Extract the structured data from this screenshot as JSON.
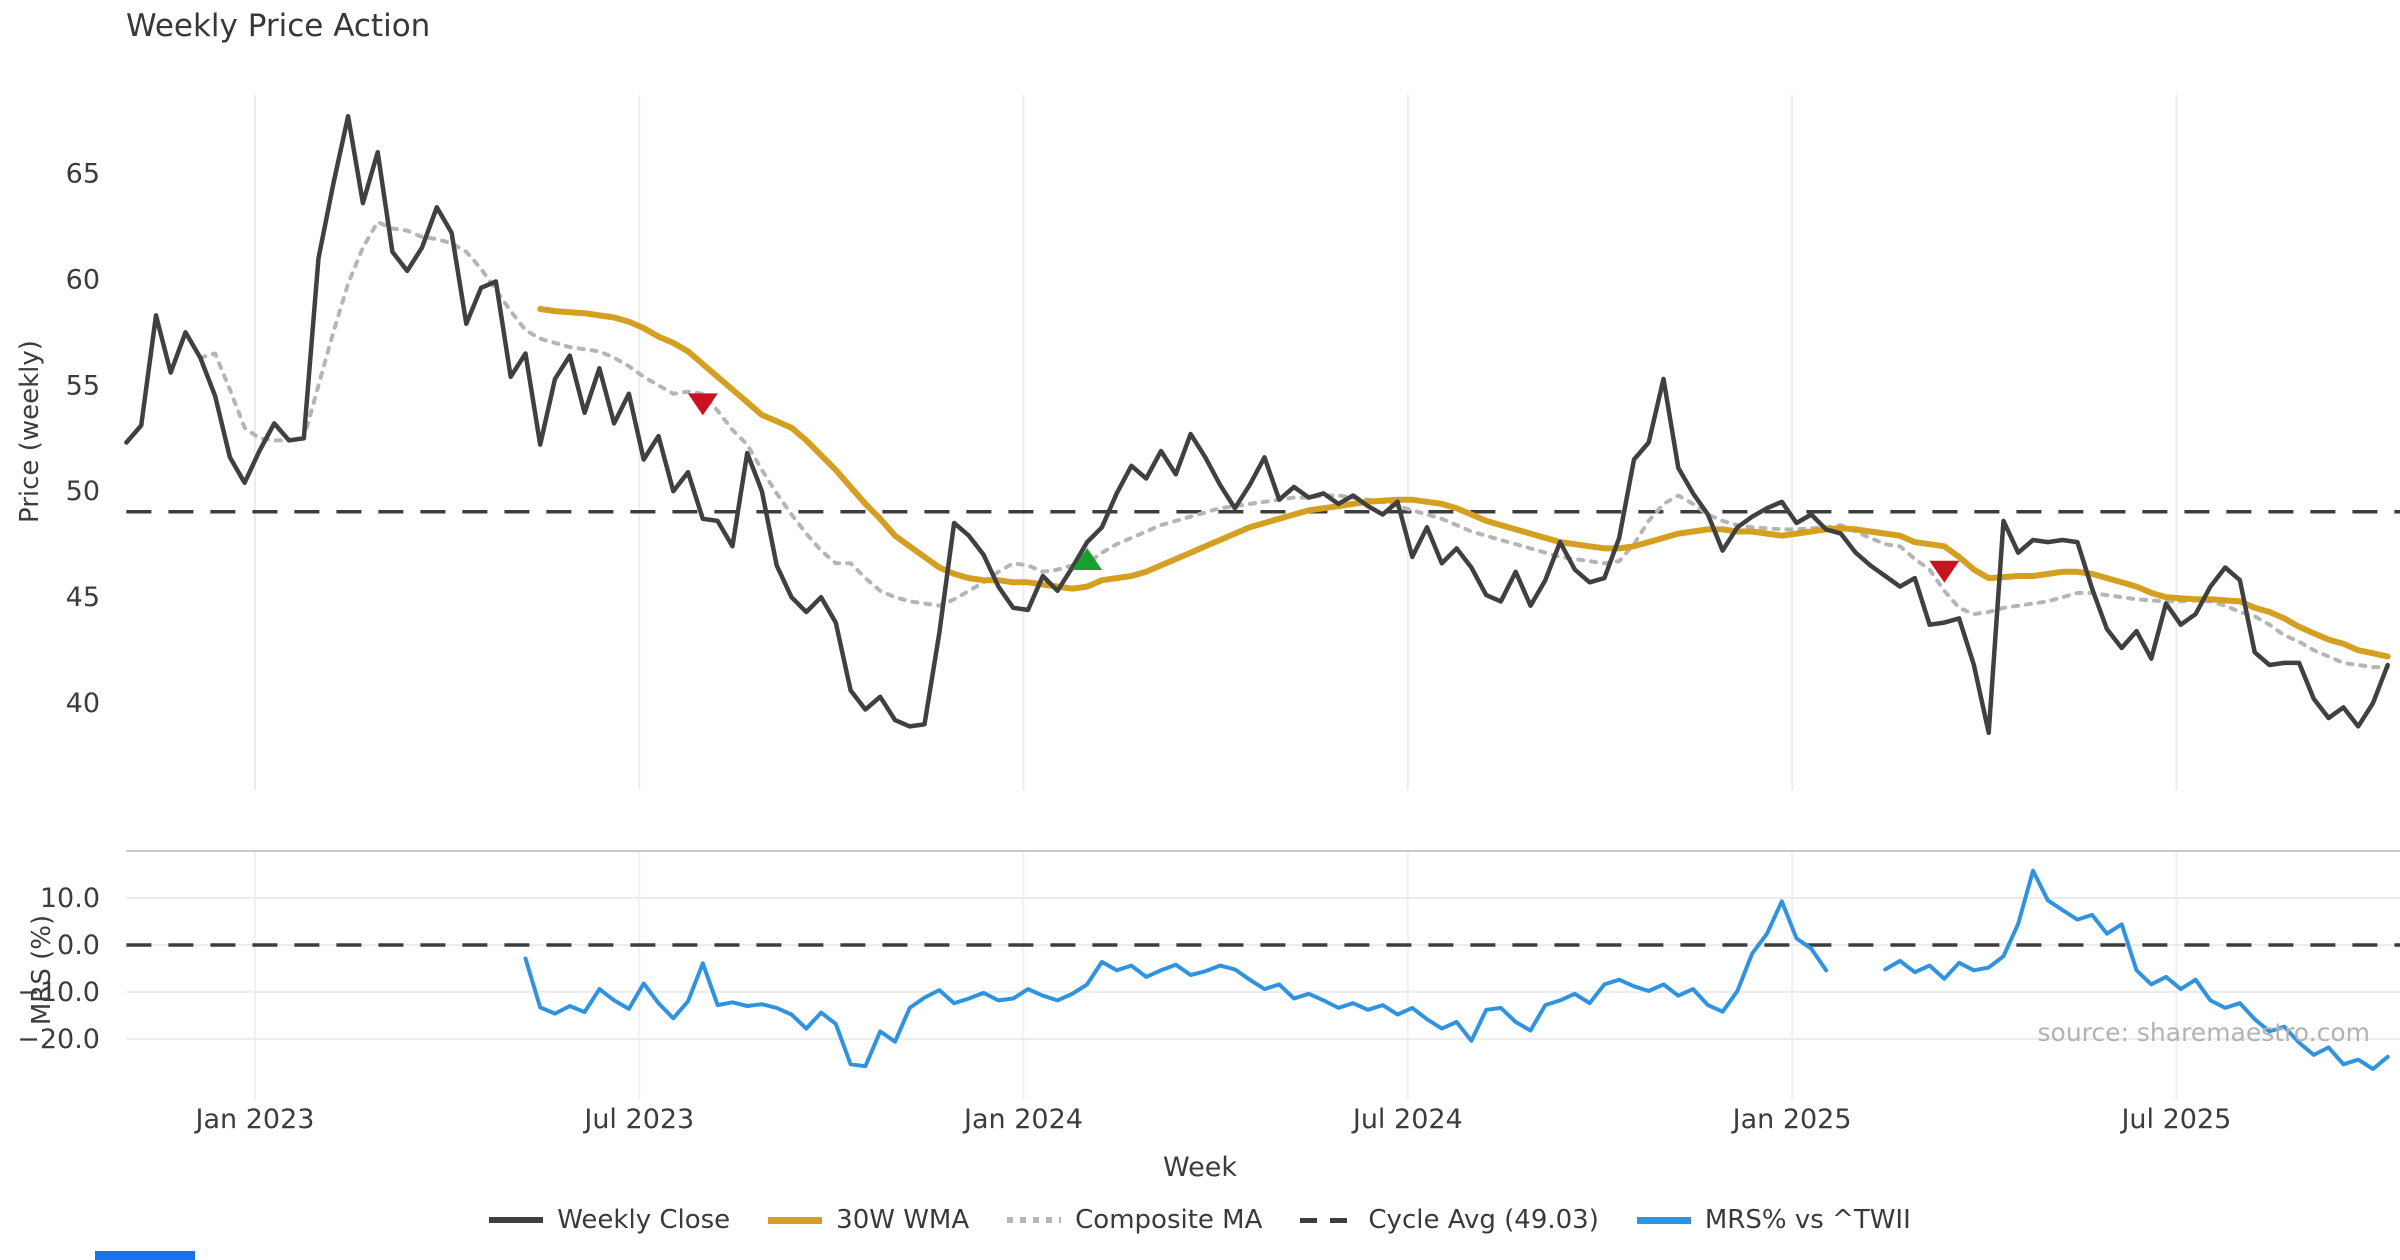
{
  "title": "Weekly Price Action",
  "source_note": "source: sharemaestro.com",
  "legend": {
    "weekly_close": "Weekly Close",
    "wma": "30W WMA",
    "composite": "Composite MA",
    "cycle_avg": "Cycle Avg (49.03)",
    "mrs": "MRS% vs ^TWII"
  },
  "chart_data": [
    {
      "type": "line",
      "panel": "price",
      "title": "Weekly Price Action",
      "xlabel": "Week",
      "ylabel": "Price (weekly)",
      "ylim": [
        35.9,
        68.7
      ],
      "y_ticks": [
        {
          "v": 65,
          "label": "65"
        },
        {
          "v": 60,
          "label": "60"
        },
        {
          "v": 55,
          "label": "55"
        },
        {
          "v": 50,
          "label": "50"
        },
        {
          "v": 45,
          "label": "45"
        },
        {
          "v": 40,
          "label": "40"
        }
      ],
      "x_ticks": [
        {
          "week": 8.7,
          "label": "Jan 2023"
        },
        {
          "week": 34.7,
          "label": "Jul 2023"
        },
        {
          "week": 60.7,
          "label": "Jan 2024"
        },
        {
          "week": 86.7,
          "label": "Jul 2024"
        },
        {
          "week": 112.7,
          "label": "Jan 2025"
        },
        {
          "week": 138.7,
          "label": "Jul 2025"
        }
      ],
      "grid": "vertical-only",
      "cycle_avg": 49.03,
      "series": [
        {
          "name": "Weekly Close",
          "color": "#404040",
          "style": "solid",
          "width": 4.5,
          "start_week": 0,
          "values": [
            52.3,
            53.1,
            58.3,
            55.6,
            57.5,
            56.3,
            54.5,
            51.6,
            50.4,
            51.9,
            53.2,
            52.4,
            52.5,
            61.0,
            64.5,
            67.7,
            63.6,
            66.0,
            61.3,
            60.4,
            61.5,
            63.4,
            62.2,
            57.9,
            59.6,
            59.9,
            55.4,
            56.5,
            52.2,
            55.3,
            56.4,
            53.7,
            55.8,
            53.2,
            54.6,
            51.5,
            52.6,
            50.0,
            50.9,
            48.7,
            48.6,
            47.4,
            51.8,
            50.0,
            46.5,
            45.0,
            44.3,
            45.0,
            43.8,
            40.6,
            39.7,
            40.3,
            39.2,
            38.9,
            39.0,
            43.3,
            48.5,
            47.9,
            47.0,
            45.5,
            44.5,
            44.4,
            46.0,
            45.3,
            46.4,
            47.6,
            48.3,
            49.9,
            51.2,
            50.6,
            51.9,
            50.8,
            52.7,
            51.6,
            50.3,
            49.2,
            50.3,
            51.6,
            49.6,
            50.2,
            49.7,
            49.9,
            49.4,
            49.8,
            49.3,
            48.9,
            49.5,
            46.9,
            48.3,
            46.6,
            47.3,
            46.4,
            45.1,
            44.8,
            46.2,
            44.6,
            45.8,
            47.6,
            46.3,
            45.7,
            45.9,
            47.8,
            51.5,
            52.3,
            55.3,
            51.1,
            49.9,
            48.9,
            47.2,
            48.3,
            48.8,
            49.2,
            49.5,
            48.5,
            48.9,
            48.2,
            48.0,
            47.1,
            46.5,
            46.0,
            45.5,
            45.9,
            43.7,
            43.8,
            44.0,
            41.8,
            38.6,
            48.6,
            47.1,
            47.7,
            47.6,
            47.7,
            47.6,
            45.4,
            43.5,
            42.6,
            43.4,
            42.1,
            44.7,
            43.7,
            44.2,
            45.5,
            46.4,
            45.8,
            42.4,
            41.8,
            41.9,
            41.9,
            40.2,
            39.3,
            39.8,
            38.9,
            40.0,
            41.8
          ]
        },
        {
          "name": "30W WMA",
          "color": "#d5a021",
          "style": "solid",
          "width": 6,
          "start_week": 28,
          "values": [
            58.6,
            58.5,
            58.45,
            58.4,
            58.3,
            58.2,
            58.0,
            57.7,
            57.3,
            57.0,
            56.6,
            56.0,
            55.4,
            54.8,
            54.2,
            53.6,
            53.3,
            53.0,
            52.4,
            51.7,
            51.0,
            50.2,
            49.4,
            48.7,
            47.9,
            47.4,
            46.9,
            46.4,
            46.1,
            45.9,
            45.8,
            45.8,
            45.7,
            45.7,
            45.6,
            45.5,
            45.4,
            45.5,
            45.8,
            45.9,
            46.0,
            46.2,
            46.5,
            46.8,
            47.1,
            47.4,
            47.7,
            48.0,
            48.3,
            48.5,
            48.7,
            48.9,
            49.1,
            49.2,
            49.3,
            49.4,
            49.5,
            49.55,
            49.6,
            49.6,
            49.5,
            49.4,
            49.2,
            48.9,
            48.6,
            48.4,
            48.2,
            48.0,
            47.8,
            47.6,
            47.5,
            47.4,
            47.3,
            47.3,
            47.4,
            47.6,
            47.8,
            48.0,
            48.1,
            48.2,
            48.2,
            48.1,
            48.1,
            48.0,
            47.9,
            48.0,
            48.1,
            48.2,
            48.25,
            48.2,
            48.1,
            48.0,
            47.9,
            47.6,
            47.5,
            47.4,
            46.9,
            46.3,
            45.9,
            45.95,
            46.0,
            46.0,
            46.1,
            46.2,
            46.2,
            46.1,
            45.9,
            45.7,
            45.5,
            45.2,
            45.0,
            44.95,
            44.9,
            44.9,
            44.85,
            44.8,
            44.5,
            44.3,
            44.0,
            43.6,
            43.3,
            43.0,
            42.8,
            42.5,
            42.35,
            42.2
          ]
        },
        {
          "name": "Composite MA",
          "color": "#b5b5b5",
          "style": "dotted",
          "width": 4,
          "start_week": 5,
          "values": [
            56.3,
            56.5,
            54.8,
            53.0,
            52.5,
            52.4,
            52.4,
            52.5,
            55.0,
            57.5,
            59.8,
            61.5,
            62.7,
            62.4,
            62.3,
            62.0,
            61.9,
            61.7,
            61.3,
            60.5,
            59.5,
            58.5,
            57.6,
            57.2,
            57.0,
            56.8,
            56.7,
            56.6,
            56.3,
            55.9,
            55.4,
            55.0,
            54.6,
            54.7,
            54.6,
            53.8,
            52.9,
            52.2,
            51.0,
            49.9,
            48.9,
            48.0,
            47.2,
            46.6,
            46.6,
            45.9,
            45.3,
            45.0,
            44.8,
            44.7,
            44.6,
            44.9,
            45.3,
            45.7,
            46.2,
            46.6,
            46.5,
            46.2,
            46.3,
            46.5,
            46.6,
            47.1,
            47.5,
            47.8,
            48.1,
            48.4,
            48.6,
            48.8,
            49.0,
            49.2,
            49.3,
            49.4,
            49.5,
            49.6,
            49.7,
            49.7,
            49.8,
            49.8,
            49.7,
            49.6,
            49.5,
            49.3,
            49.1,
            48.9,
            48.7,
            48.4,
            48.1,
            47.9,
            47.7,
            47.5,
            47.3,
            47.1,
            46.9,
            46.8,
            46.7,
            46.6,
            46.7,
            47.5,
            48.6,
            49.4,
            49.8,
            49.4,
            48.9,
            48.6,
            48.4,
            48.3,
            48.25,
            48.2,
            48.2,
            48.25,
            48.3,
            48.4,
            48.1,
            47.8,
            47.5,
            47.4,
            46.8,
            46.3,
            45.3,
            44.5,
            44.2,
            44.3,
            44.5,
            44.6,
            44.7,
            44.8,
            45.0,
            45.2,
            45.2,
            45.1,
            45.0,
            44.9,
            44.85,
            44.8,
            44.8,
            44.85,
            44.8,
            44.6,
            44.3,
            44.1,
            43.7,
            43.2,
            42.9,
            42.5,
            42.2,
            41.9,
            41.8,
            41.7,
            41.7
          ]
        }
      ],
      "markers": [
        {
          "week": 39,
          "price": 54.1,
          "type": "sell",
          "shape": "triangle-down",
          "color": "#c91420"
        },
        {
          "week": 65,
          "price": 46.8,
          "type": "buy",
          "shape": "triangle-up",
          "color": "#17a02b"
        },
        {
          "week": 123,
          "price": 46.2,
          "type": "sell",
          "shape": "triangle-down",
          "color": "#c91420"
        }
      ]
    },
    {
      "type": "line",
      "panel": "mrs",
      "ylabel": "MRS (%)",
      "ylim": [
        -33,
        20
      ],
      "y_ticks": [
        {
          "v": 10,
          "label": "10.0"
        },
        {
          "v": 0,
          "label": "0.0"
        },
        {
          "v": -10,
          "label": "−10.0"
        },
        {
          "v": -20,
          "label": "−20.0"
        }
      ],
      "zero_line": 0,
      "grid": "both",
      "series": [
        {
          "name": "MRS% vs ^TWII",
          "color": "#2f93e0",
          "style": "solid",
          "width": 4,
          "start_week": 27,
          "values": [
            -2.9,
            -13.3,
            -14.6,
            -13.0,
            -14.3,
            -9.4,
            -11.8,
            -13.6,
            -8.2,
            -12.4,
            -15.6,
            -12.0,
            -3.9,
            -12.8,
            -12.2,
            -13.0,
            -12.6,
            -13.4,
            -14.8,
            -17.8,
            -14.4,
            -16.8,
            -25.4,
            -25.8,
            -18.4,
            -20.6,
            -13.4,
            -11.2,
            -9.6,
            -12.4,
            -11.4,
            -10.2,
            -11.8,
            -11.4,
            -9.4,
            -10.8,
            -11.8,
            -10.4,
            -8.4,
            -3.6,
            -5.4,
            -4.4,
            -6.8,
            -5.4,
            -4.2,
            -6.4,
            -5.6,
            -4.4,
            -5.2,
            -7.4,
            -9.4,
            -8.4,
            -11.4,
            -10.4,
            -11.8,
            -13.4,
            -12.4,
            -13.8,
            -12.8,
            -14.8,
            -13.4,
            -15.8,
            -17.8,
            -16.4,
            -20.4,
            -13.8,
            -13.4,
            -16.4,
            -18.2,
            -12.8,
            -11.8,
            -10.4,
            -12.4,
            -8.4,
            -7.4,
            -8.8,
            -9.8,
            -8.4,
            -10.8,
            -9.4,
            -12.8,
            -14.2,
            -9.8,
            -1.8,
            2.4,
            9.3,
            1.4,
            -0.8,
            -5.4,
            null,
            null,
            null,
            -5.2,
            -3.4,
            -5.8,
            -4.4,
            -7.2,
            -3.8,
            -5.4,
            -4.8,
            -2.4,
            4.5,
            15.8,
            9.5,
            7.4,
            5.4,
            6.4,
            2.4,
            4.4,
            -5.4,
            -8.4,
            -6.8,
            -9.4,
            -7.4,
            -11.8,
            -13.4,
            -12.4,
            -15.8,
            -18.4,
            -17.4,
            -20.8,
            -23.4,
            -21.8,
            -25.4,
            -24.4,
            -26.4,
            -23.8
          ]
        }
      ]
    }
  ]
}
